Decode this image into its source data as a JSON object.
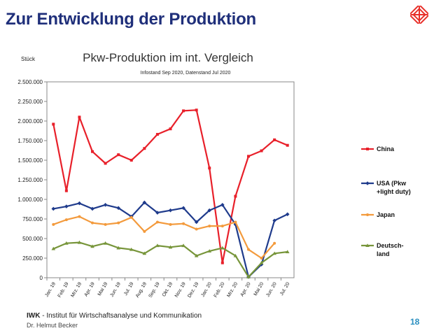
{
  "slide": {
    "title": "Zur Entwicklung der Produktion",
    "footer_org_bold": "IWK",
    "footer_org_rest": " - Institut für Wirtschaftsanalyse und Kommunikation",
    "footer_author": "Dr. Helmut Becker",
    "page_number": "18",
    "accent_color": "#1f2f7a",
    "logo_color": "#e8302a"
  },
  "chart_data": {
    "type": "line",
    "title": "Pkw-Produktion im int. Vergleich",
    "subtitle": "Infostand Sep 2020, Datenstand Jul 2020",
    "ylabel": "Stück",
    "xlabel": "",
    "ylim": [
      0,
      2500000
    ],
    "y_ticks": [
      0,
      250000,
      500000,
      750000,
      1000000,
      1250000,
      1500000,
      1750000,
      2000000,
      2250000,
      2500000
    ],
    "y_tick_labels": [
      "0",
      "250.000",
      "500.000",
      "750.000",
      "1.000.000",
      "1.250.000",
      "1.500.000",
      "1.750.000",
      "2.000.000",
      "2.250.000",
      "2.500.000"
    ],
    "grid": false,
    "legend_position": "right",
    "categories": [
      "Jan. 19",
      "Feb. 19",
      "Mrz. 19",
      "Apr. 19",
      "Mai 19",
      "Jun. 19",
      "Jul. 19",
      "Aug. 19",
      "Sep. 19",
      "Okt. 19",
      "Nov. 19",
      "Dez. 19",
      "Jan. 20",
      "Feb. 20",
      "Mrz. 20",
      "Apr. 20",
      "Mai 20",
      "Jun. 20",
      "Jul. 20"
    ],
    "series": [
      {
        "name": "China",
        "color": "#e8202a",
        "marker": "square",
        "values": [
          1960000,
          1110000,
          2050000,
          1610000,
          1460000,
          1570000,
          1500000,
          1650000,
          1830000,
          1900000,
          2130000,
          2140000,
          1400000,
          190000,
          1040000,
          1550000,
          1620000,
          1760000,
          1690000
        ]
      },
      {
        "name": "USA (Pkw +light duty)",
        "color": "#1f3b8c",
        "marker": "diamond",
        "values": [
          880000,
          910000,
          950000,
          880000,
          930000,
          890000,
          780000,
          960000,
          830000,
          860000,
          890000,
          710000,
          860000,
          930000,
          680000,
          10000,
          170000,
          730000,
          810000
        ]
      },
      {
        "name": "Japan",
        "color": "#f39a3c",
        "marker": "circle",
        "values": [
          680000,
          740000,
          780000,
          700000,
          680000,
          700000,
          770000,
          590000,
          710000,
          680000,
          690000,
          620000,
          660000,
          660000,
          710000,
          360000,
          250000,
          440000,
          null
        ]
      },
      {
        "name": "Deutsch-land",
        "color": "#77953a",
        "marker": "triangle",
        "values": [
          370000,
          440000,
          450000,
          400000,
          440000,
          380000,
          360000,
          310000,
          410000,
          390000,
          410000,
          280000,
          340000,
          380000,
          280000,
          10000,
          190000,
          310000,
          330000
        ]
      }
    ],
    "legend_labels": [
      [
        "China"
      ],
      [
        "USA (Pkw",
        "+light duty)"
      ],
      [
        "Japan"
      ],
      [
        "Deutsch-",
        "land"
      ]
    ]
  }
}
